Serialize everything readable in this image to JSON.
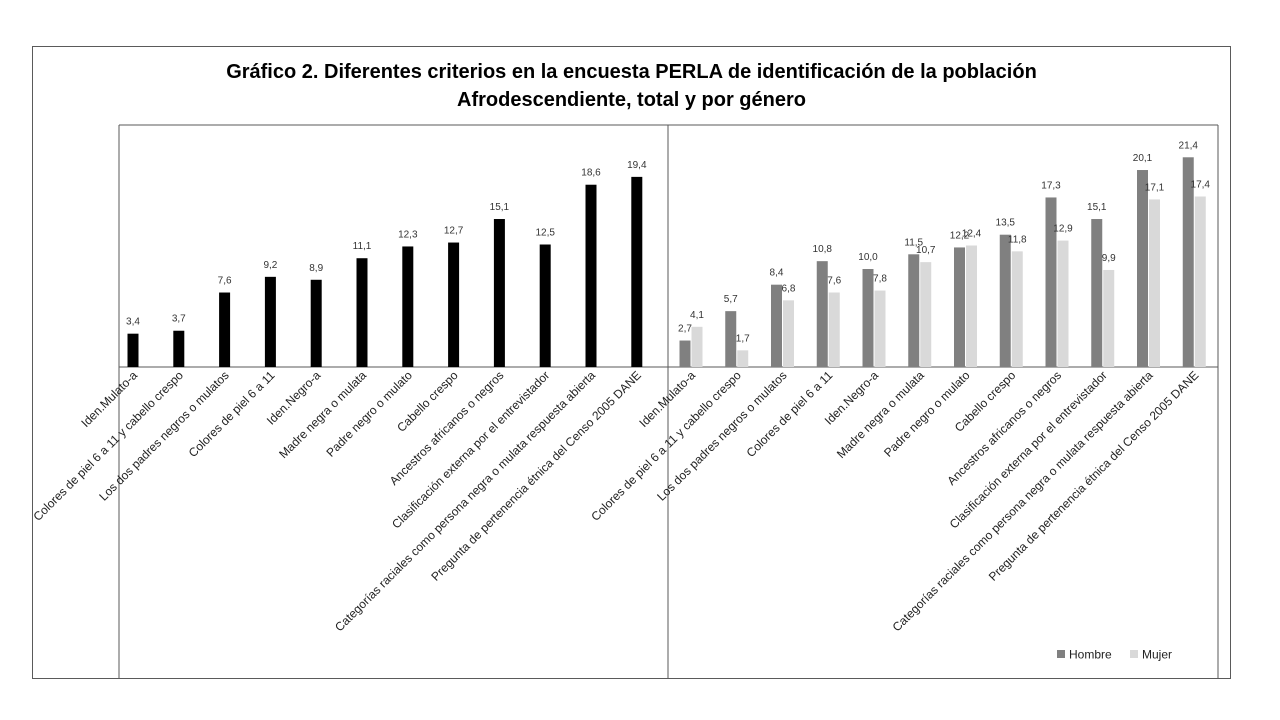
{
  "chart_data": {
    "type": "bar",
    "title_line1": "Gráfico 2. Diferentes criterios en la encuesta PERLA de identificación de la población",
    "title_line2": "Afrodescendiente, total y por género",
    "categories": [
      "Iden.Mulato-a",
      "Colores de piel 6 a 11 y cabello crespo",
      "Los dos padres negros o mulatos",
      "Colores de piel 6 a 11",
      "Iden.Negro-a",
      "Madre negra o mulata",
      "Padre negro o mulato",
      "Cabello crespo",
      "Ancestros africanos o negros",
      "Clasificación externa por el entrevistador",
      "Categorías raciales como persona negra o mulata respuesta abierta",
      "Pregunta de pertenencia étnica del Censo 2005 DANE"
    ],
    "panels": [
      {
        "series": [
          {
            "values": [
              3.4,
              3.7,
              7.6,
              9.2,
              8.9,
              11.1,
              12.3,
              12.7,
              15.1,
              12.5,
              18.6,
              19.4
            ],
            "labels": [
              "3,4",
              "3,7",
              "7,6",
              "9,2",
              "8,9",
              "11,1",
              "12,3",
              "12,7",
              "15,1",
              "12,5",
              "18,6",
              "19,4"
            ],
            "color": "#000000"
          }
        ]
      },
      {
        "series": [
          {
            "name": "Hombre",
            "values": [
              2.7,
              5.7,
              8.4,
              10.8,
              10.0,
              11.5,
              12.2,
              13.5,
              17.3,
              15.1,
              20.1,
              21.4
            ],
            "labels": [
              "2,7",
              "5,7",
              "8,4",
              "10,8",
              "10,0",
              "11,5",
              "12,2",
              "13,5",
              "17,3",
              "15,1",
              "20,1",
              "21,4"
            ],
            "color": "#808080"
          },
          {
            "name": "Mujer",
            "values": [
              4.1,
              1.7,
              6.8,
              7.6,
              7.8,
              10.7,
              12.4,
              11.8,
              12.9,
              9.9,
              17.1,
              17.4
            ],
            "labels": [
              "4,1",
              "1,7",
              "6,8",
              "7,6",
              "7,8",
              "10,7",
              "12,4",
              "11,8",
              "12,9",
              "9,9",
              "17,1",
              "17,4"
            ],
            "color": "#d9d9d9"
          }
        ]
      }
    ],
    "legend": {
      "position": "bottom-right",
      "items": [
        "Hombre",
        "Mujer"
      ]
    },
    "grid": false
  }
}
